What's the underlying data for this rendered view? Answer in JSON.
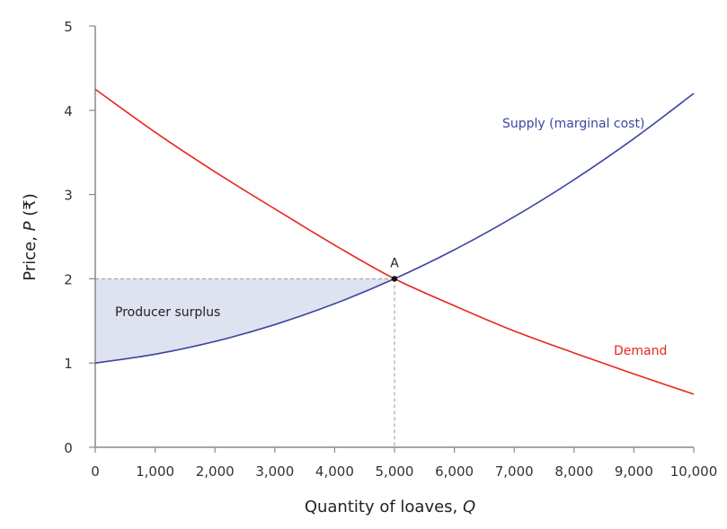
{
  "chart_data": {
    "type": "line",
    "title": "",
    "xlabel_text": "Quantity of loaves, ",
    "xlabel_var": "Q",
    "ylabel_text": "Price, ",
    "ylabel_var": "P",
    "ylabel_unit": " (₹)",
    "xlim": [
      0,
      10000
    ],
    "ylim": [
      0,
      5
    ],
    "grid": false,
    "x_ticks": [
      0,
      1000,
      2000,
      3000,
      4000,
      5000,
      6000,
      7000,
      8000,
      9000,
      10000
    ],
    "x_tick_labels": [
      "0",
      "1,000",
      "2,000",
      "3,000",
      "4,000",
      "5,000",
      "6,000",
      "7,000",
      "8,000",
      "9,000",
      "10,000"
    ],
    "y_ticks": [
      0,
      1,
      2,
      3,
      4,
      5
    ],
    "y_tick_labels": [
      "0",
      "1",
      "2",
      "3",
      "4",
      "5"
    ],
    "x": [
      0,
      1000,
      2000,
      3000,
      4000,
      5000,
      6000,
      7000,
      8000,
      9000,
      10000
    ],
    "series": [
      {
        "name": "Supply (marginal cost)",
        "color": "#3c45a0",
        "values": [
          1.0,
          1.104,
          1.256,
          1.456,
          1.704,
          2.0,
          2.344,
          2.736,
          3.176,
          3.664,
          4.2
        ]
      },
      {
        "name": "Demand",
        "color": "#e8261d",
        "values": [
          4.25,
          3.74,
          3.27,
          2.83,
          2.4,
          2.0,
          1.68,
          1.38,
          1.12,
          0.87,
          0.63
        ]
      }
    ],
    "equilibrium": {
      "label": "A",
      "x": 5000,
      "y": 2
    },
    "shaded_region": {
      "label": "Producer surplus",
      "color": "#dfe2f0",
      "between": "price 2 and supply, Q 0–5000"
    }
  }
}
